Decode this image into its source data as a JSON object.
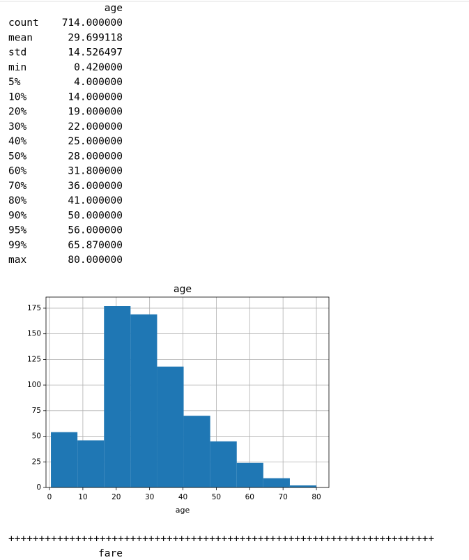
{
  "table": {
    "header": "age",
    "rows": [
      [
        "count",
        "714.000000"
      ],
      [
        "mean",
        "29.699118"
      ],
      [
        "std",
        "14.526497"
      ],
      [
        "min",
        "0.420000"
      ],
      [
        "5%",
        "4.000000"
      ],
      [
        "10%",
        "14.000000"
      ],
      [
        "20%",
        "19.000000"
      ],
      [
        "30%",
        "22.000000"
      ],
      [
        "40%",
        "25.000000"
      ],
      [
        "50%",
        "28.000000"
      ],
      [
        "60%",
        "31.800000"
      ],
      [
        "70%",
        "36.000000"
      ],
      [
        "80%",
        "41.000000"
      ],
      [
        "90%",
        "50.000000"
      ],
      [
        "95%",
        "56.000000"
      ],
      [
        "99%",
        "65.870000"
      ],
      [
        "max",
        "80.000000"
      ]
    ]
  },
  "chart_data": {
    "type": "histogram",
    "title": "age",
    "x_label": "age",
    "bins": [
      0.42,
      8.378,
      16.336,
      24.294,
      32.252,
      40.21,
      48.168,
      56.126,
      64.084,
      72.042,
      80.0
    ],
    "values": [
      54,
      46,
      177,
      169,
      118,
      70,
      45,
      24,
      9,
      2
    ],
    "color": "#1f77b4",
    "xlim": [
      -1.05,
      83.75
    ],
    "xticks": [
      0,
      10,
      20,
      30,
      40,
      50,
      60,
      70,
      80
    ],
    "ylim": [
      0,
      185.85
    ],
    "yticks": [
      0,
      25,
      50,
      75,
      100,
      125,
      150,
      175
    ],
    "grid": true
  },
  "separator": "++++++++++++++++++++++++++++++++++++++++++++++++++++++++++++++++++++++",
  "next_header": "fare"
}
